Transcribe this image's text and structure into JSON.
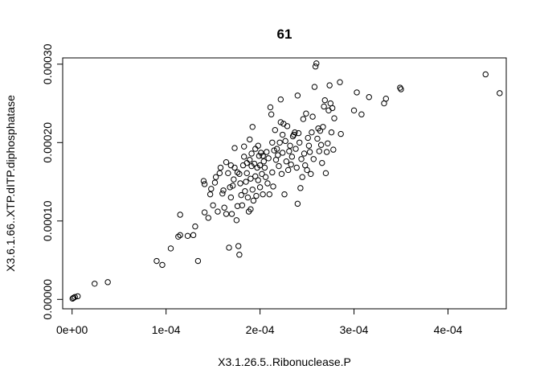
{
  "chart_data": {
    "type": "scatter",
    "title": "61",
    "xlabel": "X3.1.26.5..Ribonuclease.P",
    "ylabel": "X3.6.1.66..XTP.dITP.diphosphatase",
    "xlim": [
      -1e-05,
      0.000462
    ],
    "ylim": [
      -1.2e-05,
      0.000308
    ],
    "x_ticks": [
      0,
      0.0001,
      0.0002,
      0.0003,
      0.0004
    ],
    "x_tick_labels": [
      "0e+00",
      "1e-04",
      "2e-04",
      "3e-04",
      "4e-04"
    ],
    "y_ticks": [
      0,
      0.0001,
      0.0002,
      0.0003
    ],
    "y_tick_labels": [
      "0.00000",
      "0.00010",
      "0.00020",
      "0.00030"
    ],
    "grid": false,
    "marker": "open-circle",
    "points": [
      [
        5e-07,
        1e-06
      ],
      [
        1.5e-06,
        2e-06
      ],
      [
        3e-06,
        3e-06
      ],
      [
        6e-06,
        4e-06
      ],
      [
        2.4e-05,
        2e-05
      ],
      [
        3.8e-05,
        2.2e-05
      ],
      [
        9e-05,
        4.9e-05
      ],
      [
        9.6e-05,
        4.4e-05
      ],
      [
        0.000105,
        6.5e-05
      ],
      [
        0.000113,
        8e-05
      ],
      [
        0.000115,
        8.2e-05
      ],
      [
        0.000115,
        0.000108
      ],
      [
        0.000123,
        8.1e-05
      ],
      [
        0.000129,
        8.2e-05
      ],
      [
        0.000131,
        9.3e-05
      ],
      [
        0.000134,
        4.9e-05
      ],
      [
        0.00014,
        0.000151
      ],
      [
        0.000141,
        0.000147
      ],
      [
        0.000141,
        0.000111
      ],
      [
        0.000145,
        0.000104
      ],
      [
        0.000147,
        0.000134
      ],
      [
        0.000148,
        0.000141
      ],
      [
        0.00015,
        0.00012
      ],
      [
        0.000152,
        0.000149
      ],
      [
        0.000153,
        0.000156
      ],
      [
        0.000155,
        0.000112
      ],
      [
        0.000157,
        0.000161
      ],
      [
        0.000158,
        0.000168
      ],
      [
        0.00016,
        0.000135
      ],
      [
        0.000161,
        0.000139
      ],
      [
        0.000162,
        0.000117
      ],
      [
        0.000164,
        0.000109
      ],
      [
        0.000164,
        0.000175
      ],
      [
        0.000166,
        0.000161
      ],
      [
        0.000167,
        6.6e-05
      ],
      [
        0.000168,
        0.000143
      ],
      [
        0.000169,
        0.000171
      ],
      [
        0.000169,
        0.00013
      ],
      [
        0.00017,
        0.000109
      ],
      [
        0.000171,
        0.000145
      ],
      [
        0.000172,
        0.000153
      ],
      [
        0.000173,
        0.000168
      ],
      [
        0.000173,
        0.000193
      ],
      [
        0.000175,
        0.000101
      ],
      [
        0.000176,
        0.000162
      ],
      [
        0.000176,
        0.000119
      ],
      [
        0.000177,
        6.8e-05
      ],
      [
        0.000178,
        5.7e-05
      ],
      [
        0.000178,
        0.00016
      ],
      [
        0.000179,
        0.000148
      ],
      [
        0.00018,
        0.000133
      ],
      [
        0.000181,
        0.00012
      ],
      [
        0.000182,
        0.000171
      ],
      [
        0.000183,
        0.000182
      ],
      [
        0.000183,
        0.000195
      ],
      [
        0.000184,
        0.000138
      ],
      [
        0.000185,
        0.00015
      ],
      [
        0.000186,
        0.000174
      ],
      [
        0.000186,
        0.000161
      ],
      [
        0.000187,
        0.00013
      ],
      [
        0.000188,
        0.000112
      ],
      [
        0.000189,
        0.000204
      ],
      [
        0.000189,
        0.000178
      ],
      [
        0.00019,
        0.000154
      ],
      [
        0.00019,
        0.000115
      ],
      [
        0.000191,
        0.000186
      ],
      [
        0.000191,
        0.00017
      ],
      [
        0.000192,
        0.00022
      ],
      [
        0.000192,
        0.00014
      ],
      [
        0.000193,
        0.000126
      ],
      [
        0.000194,
        0.000173
      ],
      [
        0.000195,
        0.000192
      ],
      [
        0.000195,
        0.000157
      ],
      [
        0.000196,
        0.000132
      ],
      [
        0.000197,
        0.000168
      ],
      [
        0.000198,
        0.000196
      ],
      [
        0.000198,
        0.000152
      ],
      [
        0.000199,
        0.000183
      ],
      [
        0.0002,
        0.000171
      ],
      [
        0.0002,
        0.000143
      ],
      [
        0.000201,
        0.000187
      ],
      [
        0.000202,
        0.00016
      ],
      [
        0.000203,
        0.000183
      ],
      [
        0.000203,
        0.000134
      ],
      [
        0.000204,
        0.000176
      ],
      [
        0.000205,
        0.000168
      ],
      [
        0.000206,
        0.000156
      ],
      [
        0.000207,
        0.000188
      ],
      [
        0.000208,
        0.000148
      ],
      [
        0.000209,
        0.00018
      ],
      [
        0.00021,
        0.000134
      ],
      [
        0.000211,
        0.000245
      ],
      [
        0.000212,
        0.000236
      ],
      [
        0.000213,
        0.0002
      ],
      [
        0.000213,
        0.000162
      ],
      [
        0.000214,
        0.000144
      ],
      [
        0.000215,
        0.00019
      ],
      [
        0.000216,
        0.000216
      ],
      [
        0.000217,
        0.000178
      ],
      [
        0.000218,
        0.000192
      ],
      [
        0.000219,
        0.000184
      ],
      [
        0.00022,
        0.00017
      ],
      [
        0.000221,
        0.0002
      ],
      [
        0.000222,
        0.000226
      ],
      [
        0.000222,
        0.000255
      ],
      [
        0.000223,
        0.00016
      ],
      [
        0.000224,
        0.00021
      ],
      [
        0.000224,
        0.000187
      ],
      [
        0.000225,
        0.000224
      ],
      [
        0.000226,
        0.000134
      ],
      [
        0.000227,
        0.000202
      ],
      [
        0.000228,
        0.000176
      ],
      [
        0.000229,
        0.000221
      ],
      [
        0.00023,
        0.000165
      ],
      [
        0.000231,
        0.000189
      ],
      [
        0.000232,
        0.000196
      ],
      [
        0.000233,
        0.000172
      ],
      [
        0.000234,
        0.000182
      ],
      [
        0.000235,
        0.000208
      ],
      [
        0.000236,
        0.00021
      ],
      [
        0.000237,
        0.000213
      ],
      [
        0.000238,
        0.000192
      ],
      [
        0.000239,
        0.000168
      ],
      [
        0.00024,
        0.000122
      ],
      [
        0.00024,
        0.00026
      ],
      [
        0.000241,
        0.000212
      ],
      [
        0.000242,
        0.0002
      ],
      [
        0.000243,
        0.000142
      ],
      [
        0.000244,
        0.000179
      ],
      [
        0.000245,
        0.000156
      ],
      [
        0.000246,
        0.00023
      ],
      [
        0.000247,
        0.000186
      ],
      [
        0.000248,
        0.000171
      ],
      [
        0.000249,
        0.000237
      ],
      [
        0.00025,
        0.000165
      ],
      [
        0.000251,
        0.000206
      ],
      [
        0.000252,
        0.000196
      ],
      [
        0.000253,
        0.000188
      ],
      [
        0.000254,
        0.00016
      ],
      [
        0.000255,
        0.000213
      ],
      [
        0.000256,
        0.000233
      ],
      [
        0.000257,
        0.000179
      ],
      [
        0.000258,
        0.000271
      ],
      [
        0.000259,
        0.000297
      ],
      [
        0.00026,
        0.000301
      ],
      [
        0.000261,
        0.000205
      ],
      [
        0.000262,
        0.000218
      ],
      [
        0.000263,
        0.000189
      ],
      [
        0.000264,
        0.000215
      ],
      [
        0.000265,
        0.000197
      ],
      [
        0.000266,
        0.000174
      ],
      [
        0.000267,
        0.00022
      ],
      [
        0.000268,
        0.000246
      ],
      [
        0.000269,
        0.000254
      ],
      [
        0.00027,
        0.000161
      ],
      [
        0.000271,
        0.000188
      ],
      [
        0.000272,
        0.000199
      ],
      [
        0.000273,
        0.000241
      ],
      [
        0.000274,
        0.000273
      ],
      [
        0.000275,
        0.00025
      ],
      [
        0.000276,
        0.000213
      ],
      [
        0.000277,
        0.000244
      ],
      [
        0.000278,
        0.000191
      ],
      [
        0.000279,
        0.000231
      ],
      [
        0.000285,
        0.000277
      ],
      [
        0.000286,
        0.000211
      ],
      [
        0.0003,
        0.000241
      ],
      [
        0.000303,
        0.000264
      ],
      [
        0.000308,
        0.000236
      ],
      [
        0.000316,
        0.000258
      ],
      [
        0.000332,
        0.00025
      ],
      [
        0.000334,
        0.000256
      ],
      [
        0.000349,
        0.00027
      ],
      [
        0.00035,
        0.000268
      ],
      [
        0.00044,
        0.000287
      ],
      [
        0.000455,
        0.000263
      ]
    ]
  }
}
